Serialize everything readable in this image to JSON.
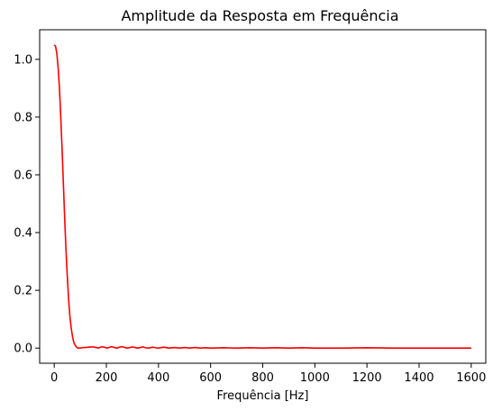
{
  "chart_data": {
    "type": "line",
    "title": "Amplitude da Resposta em Frequência",
    "xlabel": "Frequência [Hz]",
    "ylabel": "",
    "xlim": [
      -56,
      1656
    ],
    "ylim": [
      -0.0525,
      1.1025
    ],
    "xticks": [
      0,
      200,
      400,
      600,
      800,
      1000,
      1200,
      1400,
      1600
    ],
    "xtick_labels": [
      "0",
      "200",
      "400",
      "600",
      "800",
      "1000",
      "1200",
      "1400",
      "1600"
    ],
    "yticks": [
      0.0,
      0.2,
      0.4,
      0.6,
      0.8,
      1.0
    ],
    "ytick_labels": [
      "0.0",
      "0.2",
      "0.4",
      "0.6",
      "0.8",
      "1.0"
    ],
    "grid": false,
    "series": [
      {
        "color": "#ff0000",
        "x": [
          0,
          5,
          10,
          15,
          20,
          25,
          30,
          35,
          40,
          45,
          50,
          55,
          60,
          65,
          70,
          75,
          80,
          85,
          90,
          95,
          100,
          105,
          110,
          115,
          120,
          130,
          140,
          150,
          160,
          170,
          180,
          190,
          200,
          210,
          220,
          230,
          240,
          250,
          260,
          270,
          280,
          290,
          300,
          310,
          320,
          330,
          340,
          350,
          360,
          370,
          380,
          390,
          400,
          420,
          440,
          460,
          480,
          500,
          520,
          540,
          560,
          580,
          600,
          650,
          700,
          750,
          800,
          850,
          900,
          950,
          1000,
          1100,
          1200,
          1300,
          1400,
          1500,
          1600
        ],
        "y": [
          1.05,
          1.045,
          1.02,
          0.97,
          0.9,
          0.8,
          0.69,
          0.57,
          0.45,
          0.34,
          0.25,
          0.17,
          0.11,
          0.07,
          0.04,
          0.02,
          0.01,
          0.004,
          0.0,
          0.0,
          0.0,
          0.001,
          0.002,
          0.002,
          0.002,
          0.003,
          0.004,
          0.004,
          0.002,
          0.0,
          0.004,
          0.004,
          0.0,
          0.002,
          0.005,
          0.002,
          0.0,
          0.003,
          0.005,
          0.002,
          0.0,
          0.002,
          0.004,
          0.002,
          0.0,
          0.002,
          0.004,
          0.001,
          0.0,
          0.002,
          0.003,
          0.001,
          0.0,
          0.003,
          0.0,
          0.002,
          0.0,
          0.002,
          0.0,
          0.002,
          0.0,
          0.001,
          0.0,
          0.001,
          0.0,
          0.001,
          0.0,
          0.001,
          0.0,
          0.001,
          0.0,
          0.0,
          0.001,
          0.0,
          0.0,
          0.0,
          0.0
        ]
      }
    ]
  }
}
